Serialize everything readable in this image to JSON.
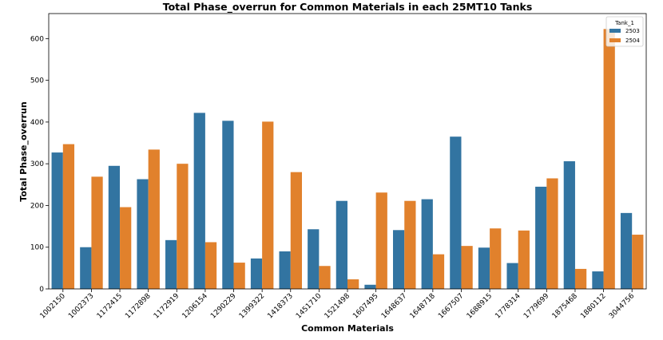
{
  "chart_data": {
    "type": "bar",
    "title": "Total Phase_overrun for Common Materials in each 25MT10 Tanks",
    "xlabel": "Common Materials",
    "ylabel": "Total Phase_overrun",
    "ylim": [
      0,
      660
    ],
    "yticks": [
      0,
      100,
      200,
      300,
      400,
      500,
      600
    ],
    "grid": false,
    "categories": [
      "1002150",
      "1002373",
      "1172415",
      "1172898",
      "1172919",
      "1206154",
      "1290229",
      "1399322",
      "1418373",
      "1451710",
      "1521498",
      "1607495",
      "1648637",
      "1648718",
      "1667507",
      "1688915",
      "1778314",
      "1779699",
      "1875468",
      "1880112",
      "3044756"
    ],
    "legend": {
      "title": "Tank_1",
      "placement": "top-right"
    },
    "series": [
      {
        "name": "2503",
        "color": "#3274a1",
        "values": [
          327,
          100,
          295,
          263,
          117,
          422,
          403,
          73,
          90,
          143,
          211,
          10,
          141,
          215,
          365,
          99,
          62,
          245,
          306,
          42,
          182
        ]
      },
      {
        "name": "2504",
        "color": "#e1812c",
        "values": [
          347,
          269,
          196,
          334,
          300,
          112,
          63,
          401,
          280,
          55,
          23,
          231,
          211,
          83,
          103,
          145,
          140,
          265,
          48,
          623,
          130
        ]
      }
    ]
  }
}
